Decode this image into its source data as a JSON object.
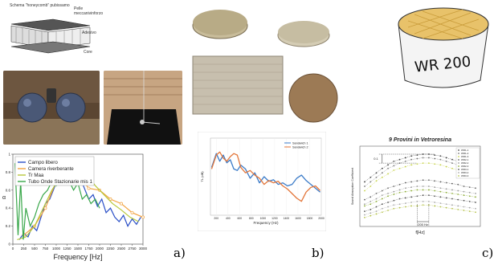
{
  "figure": {
    "panel_labels": [
      "a)",
      "b)",
      "c)"
    ]
  },
  "panel_a": {
    "schematic": {
      "title": "Schema \"honeycomb\" pubissamo",
      "labels": [
        "Pelle meccanivinforzo",
        "Adesivo",
        "Core"
      ]
    },
    "chart_data": {
      "type": "line",
      "xlabel": "Frequency [Hz]",
      "ylabel": "α",
      "x_ticks": [
        "0",
        "250",
        "500",
        "750",
        "1000",
        "1250",
        "1500",
        "1750",
        "2000",
        "2250",
        "2500",
        "2750",
        "3000"
      ],
      "y_ticks": [
        "0",
        "0.2",
        "0.4",
        "0.6",
        "0.8",
        "1"
      ],
      "xlim": [
        0,
        3000
      ],
      "ylim": [
        0,
        1
      ],
      "legend": [
        {
          "name": "Campo libero",
          "color": "#2a4fc7"
        },
        {
          "name": "Camera riverberante",
          "color": "#f2a340"
        },
        {
          "name": "Tr Maa",
          "color": "#b8c83a"
        },
        {
          "name": "Tubo Onde Stazionarie mis 1",
          "color": "#39a74a"
        }
      ],
      "series": [
        {
          "name": "Campo libero",
          "color": "#2a4fc7",
          "x": [
            150,
            250,
            350,
            450,
            550,
            650,
            750,
            850,
            950,
            1050,
            1150,
            1250,
            1350,
            1450,
            1550,
            1650,
            1750,
            1850,
            1950,
            2050,
            2150,
            2250,
            2350,
            2450,
            2550,
            2650,
            2750,
            2850,
            2950
          ],
          "y": [
            0.05,
            0.12,
            0.08,
            0.2,
            0.15,
            0.3,
            0.45,
            0.5,
            0.62,
            0.75,
            0.78,
            0.72,
            0.7,
            0.8,
            0.74,
            0.62,
            0.5,
            0.55,
            0.42,
            0.5,
            0.35,
            0.4,
            0.3,
            0.25,
            0.32,
            0.2,
            0.28,
            0.22,
            0.3
          ]
        },
        {
          "name": "Camera riverberante",
          "color": "#f2a340",
          "x": [
            250,
            500,
            750,
            1000,
            1250,
            1500,
            1750,
            2000,
            2250,
            2500,
            2750,
            3000
          ],
          "y": [
            0.1,
            0.2,
            0.4,
            0.7,
            0.8,
            0.78,
            0.62,
            0.6,
            0.5,
            0.45,
            0.35,
            0.3
          ]
        },
        {
          "name": "Tr Maa",
          "color": "#b8c83a",
          "x": [
            100,
            300,
            500,
            700,
            900,
            1100,
            1300,
            1500,
            1700,
            1900,
            2100,
            2300,
            2500,
            2700,
            2900
          ],
          "y": [
            0.05,
            0.08,
            0.2,
            0.4,
            0.6,
            0.75,
            0.82,
            0.85,
            0.78,
            0.65,
            0.55,
            0.45,
            0.38,
            0.3,
            0.25
          ]
        },
        {
          "name": "Tubo Onde Stazionarie mis 1",
          "color": "#39a74a",
          "x": [
            50,
            120,
            180,
            240,
            300,
            400,
            500,
            600,
            700,
            800,
            900,
            1000,
            1100,
            1200,
            1300,
            1400,
            1500,
            1600,
            1700,
            1800,
            1900,
            2000
          ],
          "y": [
            0.9,
            0.1,
            0.7,
            0.05,
            0.4,
            0.2,
            0.3,
            0.45,
            0.55,
            0.6,
            0.7,
            0.65,
            0.75,
            0.8,
            0.7,
            0.6,
            0.68,
            0.5,
            0.55,
            0.45,
            0.5,
            0.4
          ]
        }
      ]
    }
  },
  "panel_b": {
    "chart_data": {
      "type": "line",
      "xlabel": "Frequency (Hz)",
      "ylabel": "TL (dB)",
      "x_ticks": [
        "200",
        "400",
        "600",
        "800",
        "1000",
        "1200",
        "1400",
        "1600",
        "1800",
        "2000"
      ],
      "xlim": [
        100,
        2000
      ],
      "ylim": [
        0,
        100
      ],
      "legend": [
        {
          "name": "Sandwich 1",
          "color": "#3b7bc8"
        },
        {
          "name": "Sandwich 2",
          "color": "#e3763a"
        }
      ],
      "series": [
        {
          "name": "Sandwich 1",
          "color": "#3b7bc8",
          "x": [
            120,
            200,
            260,
            320,
            380,
            440,
            500,
            560,
            620,
            700,
            780,
            860,
            940,
            1020,
            1100,
            1180,
            1260,
            1340,
            1420,
            1500,
            1580,
            1660,
            1740,
            1820,
            1900,
            1980
          ],
          "y": [
            62,
            80,
            70,
            78,
            68,
            72,
            60,
            58,
            65,
            60,
            48,
            55,
            42,
            50,
            44,
            46,
            40,
            42,
            38,
            40,
            48,
            52,
            45,
            40,
            35,
            30
          ]
        },
        {
          "name": "Sandwich 2",
          "color": "#e3763a",
          "x": [
            120,
            200,
            260,
            320,
            380,
            440,
            500,
            560,
            620,
            700,
            780,
            860,
            940,
            1020,
            1100,
            1180,
            1260,
            1340,
            1420,
            1500,
            1580,
            1660,
            1740,
            1820,
            1900,
            1980
          ],
          "y": [
            60,
            78,
            82,
            74,
            70,
            76,
            80,
            78,
            62,
            55,
            58,
            52,
            48,
            40,
            45,
            42,
            44,
            38,
            34,
            28,
            22,
            18,
            30,
            36,
            38,
            32
          ]
        }
      ]
    }
  },
  "panel_c": {
    "sample_label": "WR 200",
    "chart_data": {
      "type": "scatter",
      "title": "9 Provini in Vetroresina",
      "xlabel": "f[Hz]",
      "ylabel": "Sound Absorption Coefficient",
      "annotations": [
        "0.1",
        "200 Hz"
      ],
      "legend": [
        "WR1-1",
        "WR1-2",
        "WR1-3",
        "WR2-1",
        "WR2-2",
        "WR2-3",
        "WR3-1",
        "WR3-2",
        "WR3-3"
      ],
      "series": [
        {
          "name": "WR1-1",
          "color": "#444444",
          "y": [
            0.55,
            0.6,
            0.65,
            0.7,
            0.74,
            0.78,
            0.8,
            0.82,
            0.84,
            0.85,
            0.86,
            0.86,
            0.85,
            0.84,
            0.82,
            0.8,
            0.78,
            0.76,
            0.74,
            0.72
          ]
        },
        {
          "name": "WR1-2",
          "color": "#777777",
          "y": [
            0.5,
            0.55,
            0.6,
            0.65,
            0.7,
            0.73,
            0.76,
            0.78,
            0.8,
            0.81,
            0.82,
            0.82,
            0.81,
            0.8,
            0.78,
            0.76,
            0.74,
            0.72,
            0.7,
            0.68
          ]
        },
        {
          "name": "WR1-3",
          "color": "#c7d34a",
          "y": [
            0.45,
            0.5,
            0.56,
            0.6,
            0.64,
            0.68,
            0.7,
            0.72,
            0.74,
            0.75,
            0.76,
            0.76,
            0.75,
            0.74,
            0.72,
            0.7,
            0.68,
            0.66,
            0.64,
            0.62
          ]
        },
        {
          "name": "WR2-1",
          "color": "#666666",
          "y": [
            0.35,
            0.38,
            0.42,
            0.45,
            0.48,
            0.5,
            0.52,
            0.54,
            0.55,
            0.56,
            0.57,
            0.57,
            0.56,
            0.55,
            0.54,
            0.53,
            0.52,
            0.5,
            0.49,
            0.48
          ]
        },
        {
          "name": "WR2-2",
          "color": "#9b9b9b",
          "y": [
            0.3,
            0.33,
            0.36,
            0.4,
            0.42,
            0.44,
            0.46,
            0.48,
            0.49,
            0.5,
            0.5,
            0.5,
            0.49,
            0.48,
            0.47,
            0.46,
            0.45,
            0.44,
            0.43,
            0.42
          ]
        },
        {
          "name": "WR2-3",
          "color": "#8fae3a",
          "y": [
            0.28,
            0.3,
            0.33,
            0.36,
            0.39,
            0.41,
            0.43,
            0.44,
            0.45,
            0.46,
            0.46,
            0.46,
            0.45,
            0.44,
            0.43,
            0.42,
            0.41,
            0.4,
            0.39,
            0.38
          ]
        },
        {
          "name": "WR3-1",
          "color": "#555555",
          "y": [
            0.22,
            0.24,
            0.27,
            0.3,
            0.32,
            0.34,
            0.36,
            0.37,
            0.38,
            0.39,
            0.4,
            0.4,
            0.39,
            0.38,
            0.37,
            0.36,
            0.35,
            0.34,
            0.33,
            0.32
          ]
        },
        {
          "name": "WR3-2",
          "color": "#aaaaaa",
          "y": [
            0.18,
            0.2,
            0.22,
            0.25,
            0.27,
            0.29,
            0.3,
            0.31,
            0.32,
            0.33,
            0.33,
            0.33,
            0.32,
            0.31,
            0.3,
            0.29,
            0.28,
            0.27,
            0.26,
            0.25
          ]
        },
        {
          "name": "WR3-3",
          "color": "#b5c24a",
          "y": [
            0.15,
            0.17,
            0.19,
            0.21,
            0.23,
            0.25,
            0.26,
            0.27,
            0.28,
            0.28,
            0.29,
            0.29,
            0.28,
            0.27,
            0.26,
            0.25,
            0.24,
            0.23,
            0.22,
            0.21
          ]
        }
      ]
    }
  }
}
